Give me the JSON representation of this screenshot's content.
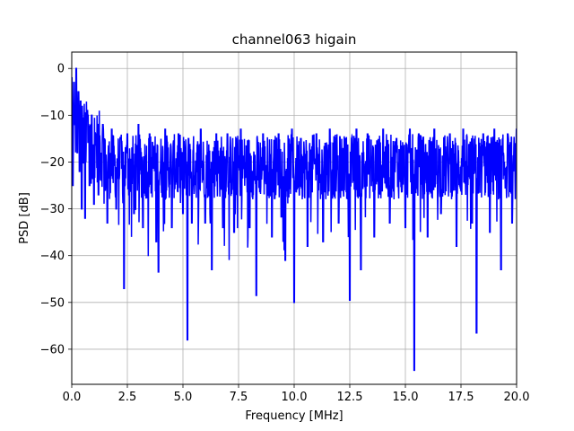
{
  "chart_data": {
    "type": "line",
    "title": "channel063 higain",
    "xlabel": "Frequency [MHz]",
    "ylabel": "PSD [dB]",
    "xlim": [
      0,
      20
    ],
    "ylim": [
      -67.5,
      3.5
    ],
    "xticks": [
      0,
      2.5,
      5,
      7.5,
      10,
      12.5,
      15,
      17.5,
      20
    ],
    "xtick_labels": [
      "0.0",
      "2.5",
      "5.0",
      "7.5",
      "10.0",
      "12.5",
      "15.0",
      "17.5",
      "20.0"
    ],
    "yticks": [
      0,
      -10,
      -20,
      -30,
      -40,
      -50,
      -60
    ],
    "ytick_labels": [
      "0",
      "−10",
      "−20",
      "−30",
      "−40",
      "−50",
      "−60"
    ],
    "grid": true,
    "legend": "none",
    "color": "#0000ff",
    "series": [
      {
        "x": [
          0.0,
          0.05,
          0.1,
          0.15,
          0.2,
          0.25,
          0.3,
          0.35,
          0.4,
          0.45,
          0.5,
          0.6,
          0.7,
          0.8,
          0.9,
          1.0,
          1.1,
          1.2,
          1.4,
          1.6,
          1.8,
          2.0,
          2.2,
          2.35,
          2.5,
          2.8,
          3.0,
          3.2,
          3.5,
          3.8,
          3.9,
          4.2,
          4.5,
          4.8,
          5.0,
          5.2,
          5.25,
          5.4,
          5.8,
          6.0,
          6.3,
          6.5,
          6.8,
          7.0,
          7.3,
          7.6,
          8.0,
          8.3,
          8.6,
          9.0,
          9.3,
          9.6,
          9.9,
          10.0,
          10.3,
          10.6,
          11.0,
          11.3,
          11.6,
          12.0,
          12.3,
          12.5,
          12.8,
          13.0,
          13.3,
          13.6,
          14.0,
          14.3,
          14.6,
          15.0,
          15.2,
          15.4,
          15.6,
          16.0,
          16.3,
          16.6,
          17.0,
          17.3,
          17.6,
          18.0,
          18.2,
          18.5,
          18.8,
          19.0,
          19.3,
          19.6,
          19.8,
          20.0
        ],
        "y": [
          -2,
          -25,
          -3,
          -12,
          0,
          -18,
          -5,
          -22,
          -7,
          -30,
          -12,
          -32,
          -9,
          -25,
          -10,
          -29,
          -14,
          -27,
          -12,
          -33,
          -13,
          -30,
          -15,
          -47,
          -14,
          -31,
          -12,
          -34,
          -14,
          -37,
          -43.5,
          -13,
          -34,
          -14,
          -31,
          -58,
          -15,
          -33,
          -13,
          -33,
          -43,
          -14,
          -34,
          -14,
          -35,
          -13,
          -34,
          -48.5,
          -14,
          -36,
          -14,
          -41,
          -13,
          -50,
          -15,
          -38,
          -14,
          -37,
          -13,
          -33,
          -15,
          -49.5,
          -13,
          -43,
          -14,
          -36,
          -13,
          -33,
          -15,
          -34,
          -13,
          -64.5,
          -14,
          -36,
          -13,
          -31,
          -14,
          -38,
          -13,
          -33,
          -56.5,
          -14,
          -35,
          -13,
          -43,
          -14,
          -33,
          -13
        ]
      }
    ]
  }
}
